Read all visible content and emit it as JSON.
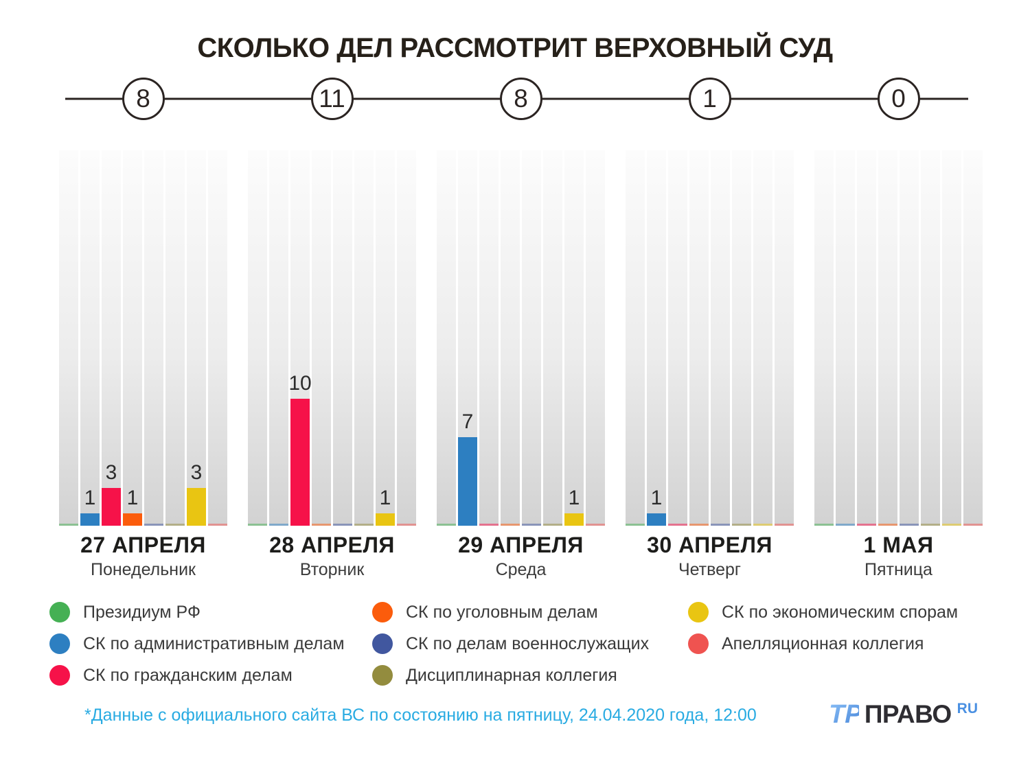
{
  "title": "СКОЛЬКО ДЕЛ РАССМОТРИТ ВЕРХОВНЫЙ СУД",
  "timeline": {
    "totals": [
      "8",
      "11",
      "8",
      "1",
      "0"
    ]
  },
  "categories": [
    {
      "label": "Президиум РФ",
      "color": "#45b054"
    },
    {
      "label": "СК по административным делам",
      "color": "#2d7fc1"
    },
    {
      "label": "СК по гражданским делам",
      "color": "#f61249"
    },
    {
      "label": "СК по уголовным делам",
      "color": "#fb5c0c"
    },
    {
      "label": "СК по делам военнослужащих",
      "color": "#41579f"
    },
    {
      "label": "Дисциплинарная коллегия",
      "color": "#938c3e"
    },
    {
      "label": "СК по экономическим спорам",
      "color": "#e9c512"
    },
    {
      "label": "Апелляционная коллегия",
      "color": "#ef5350"
    }
  ],
  "days": [
    {
      "date": "27 АПРЕЛЯ",
      "weekday": "Понедельник",
      "total": 8,
      "values": [
        0,
        1,
        3,
        1,
        0,
        0,
        3,
        0
      ]
    },
    {
      "date": "28 АПРЕЛЯ",
      "weekday": "Вторник",
      "total": 11,
      "values": [
        0,
        0,
        10,
        0,
        0,
        0,
        1,
        0
      ]
    },
    {
      "date": "29 АПРЕЛЯ",
      "weekday": "Среда",
      "total": 8,
      "values": [
        0,
        7,
        0,
        0,
        0,
        0,
        1,
        0
      ]
    },
    {
      "date": "30 АПРЕЛЯ",
      "weekday": "Четверг",
      "total": 1,
      "values": [
        0,
        1,
        0,
        0,
        0,
        0,
        0,
        0
      ]
    },
    {
      "date": "1 МАЯ",
      "weekday": "Пятница",
      "total": 0,
      "values": [
        0,
        0,
        0,
        0,
        0,
        0,
        0,
        0
      ]
    }
  ],
  "footnote": "*Данные с официального сайта ВС по состоянию на пятницу, 24.04.2020 года, 12:00",
  "logo": {
    "monogram": "ТР",
    "text": "ПРАВО",
    "suffix": "RU"
  },
  "colors": {
    "accent_blue": "#29abe2",
    "line": "#2b2422",
    "column_top": "#fcfcfc",
    "column_bottom": "#d2d2d2"
  },
  "chart_data": {
    "type": "bar",
    "title": "СКОЛЬКО ДЕЛ РАССМОТРИТ ВЕРХОВНЫЙ СУД",
    "categories": [
      "27 АПРЕЛЯ (Понедельник)",
      "28 АПРЕЛЯ (Вторник)",
      "29 АПРЕЛЯ (Среда)",
      "30 АПРЕЛЯ (Четверг)",
      "1 МАЯ (Пятница)"
    ],
    "totals_per_day": [
      8,
      11,
      8,
      1,
      0
    ],
    "series": [
      {
        "name": "Президиум РФ",
        "color": "#45b054",
        "values": [
          0,
          0,
          0,
          0,
          0
        ]
      },
      {
        "name": "СК по административным делам",
        "color": "#2d7fc1",
        "values": [
          1,
          0,
          7,
          1,
          0
        ]
      },
      {
        "name": "СК по гражданским делам",
        "color": "#f61249",
        "values": [
          3,
          10,
          0,
          0,
          0
        ]
      },
      {
        "name": "СК по уголовным делам",
        "color": "#fb5c0c",
        "values": [
          1,
          0,
          0,
          0,
          0
        ]
      },
      {
        "name": "СК по делам военнослужащих",
        "color": "#41579f",
        "values": [
          0,
          0,
          0,
          0,
          0
        ]
      },
      {
        "name": "Дисциплинарная коллегия",
        "color": "#938c3e",
        "values": [
          0,
          0,
          0,
          0,
          0
        ]
      },
      {
        "name": "СК по экономическим спорам",
        "color": "#e9c512",
        "values": [
          3,
          1,
          1,
          0,
          0
        ]
      },
      {
        "name": "Апелляционная коллегия",
        "color": "#ef5350",
        "values": [
          0,
          0,
          0,
          0,
          0
        ]
      }
    ],
    "xlabel": "",
    "ylabel": "",
    "ylim": [
      0,
      10
    ],
    "grid": false,
    "legend_position": "bottom",
    "annotations": "bar values shown above bars; daily totals shown in circles on a timeline"
  }
}
